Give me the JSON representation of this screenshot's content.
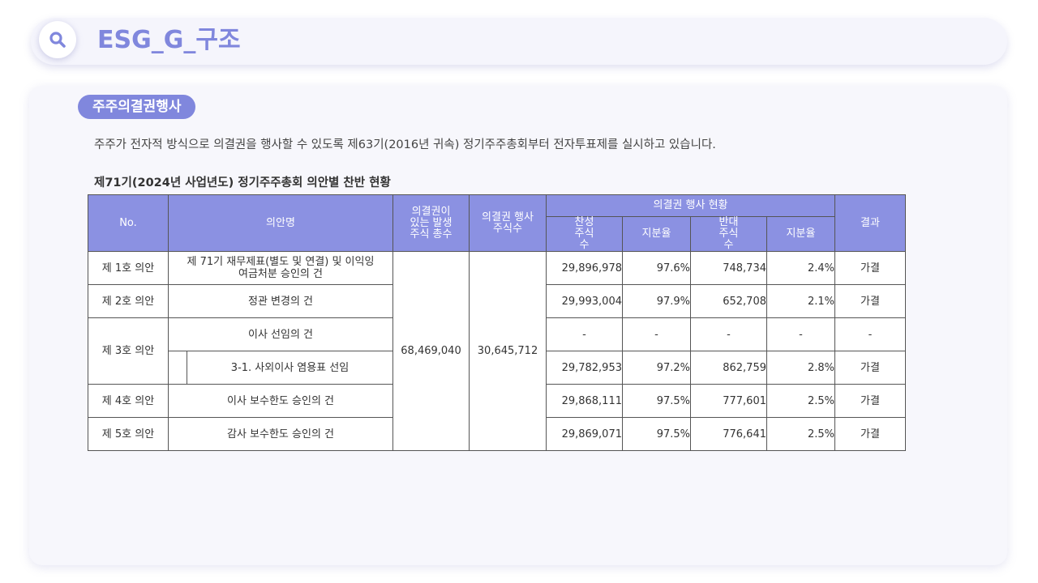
{
  "header": {
    "title": "ESG_G_구조",
    "icon": "search-icon",
    "accent": "#8087dd"
  },
  "section": {
    "label": "주주의결권행사",
    "description": "주주가 전자적 방식으로 의결권을 행사할 수 있도록 제63기(2016년 귀속) 정기주주총회부터 전자투표제를 실시하고 있습니다."
  },
  "table": {
    "title": "제71기(2024년 사업년도) 정기주주총회 의안별 찬반 현황",
    "headers": {
      "no": "No.",
      "agenda": "의안명",
      "issued": "의결권이 있는 발생 주식 총수",
      "voting": "의결권 행사주식수",
      "status": "의결권 행사 현황",
      "for_shares": "찬성 주식수",
      "for_ratio": "지분율",
      "against_shares": "반대 주식수",
      "against_ratio": "지분율",
      "result": "결과"
    },
    "issued_total": "68,469,040",
    "voting_total": "30,645,712",
    "rows": [
      {
        "no": "제 1호 의안",
        "agenda": "제 71기 재무제표(별도 및 연결) 및 이익잉여금처분 승인의 건",
        "for": "29,896,978",
        "for_pct": "97.6%",
        "against": "748,734",
        "against_pct": "2.4%",
        "result": "가결"
      },
      {
        "no": "제 2호 의안",
        "agenda": "정관 변경의 건",
        "for": "29,993,004",
        "for_pct": "97.9%",
        "against": "652,708",
        "against_pct": "2.1%",
        "result": "가결"
      },
      {
        "no": "제 3호 의안",
        "agenda": "이사 선임의 건",
        "for": "-",
        "for_pct": "-",
        "against": "-",
        "against_pct": "-",
        "result": "-"
      },
      {
        "no": "",
        "agenda": "3-1. 사외이사 염용표 선임",
        "for": "29,782,953",
        "for_pct": "97.2%",
        "against": "862,759",
        "against_pct": "2.8%",
        "result": "가결"
      },
      {
        "no": "제 4호 의안",
        "agenda": "이사 보수한도 승인의 건",
        "for": "29,868,111",
        "for_pct": "97.5%",
        "against": "777,601",
        "against_pct": "2.5%",
        "result": "가결"
      },
      {
        "no": "제 5호 의안",
        "agenda": "감사 보수한도 승인의 건",
        "for": "29,869,071",
        "for_pct": "97.5%",
        "against": "776,641",
        "against_pct": "2.5%",
        "result": "가결"
      }
    ]
  }
}
